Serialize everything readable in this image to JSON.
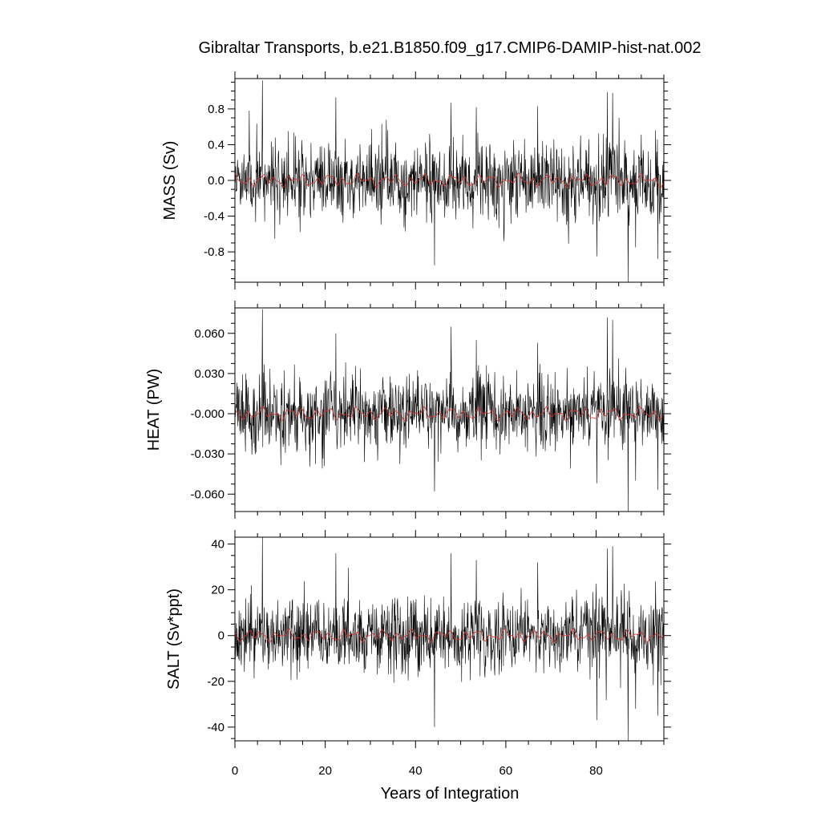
{
  "colors": {
    "raw": "#000000",
    "smooth": "#e0302a"
  },
  "chart_data": {
    "type": "line",
    "title": "Gibraltar Transports, b.e21.B1850.f09_g17.CMIP6-DAMIP-hist-nat.002",
    "xlabel": "Years of Integration",
    "xlim": [
      0,
      95
    ],
    "x_ticks": [
      0,
      20,
      40,
      60,
      80
    ],
    "x_tick_labels": [
      "0",
      "20",
      "40",
      "60",
      "80"
    ],
    "sampling": "monthly values, years 0 to 95, with a running mean in red",
    "panels": [
      {
        "id": "mass",
        "ylabel": "MASS (Sv)",
        "ylim": [
          -1.14,
          1.14
        ],
        "y_ticks": [
          0.8,
          0.4,
          0.0,
          -0.4,
          -0.8
        ],
        "y_tick_labels": [
          "0.8",
          "0.4",
          "0.0",
          "-0.4",
          "-0.8"
        ],
        "typical_amplitude": 0.25,
        "smooth_amplitude": 0.06,
        "peaks": [
          [
            6.1,
            1.12
          ],
          [
            22.3,
            0.93
          ],
          [
            44.2,
            -0.95
          ],
          [
            47.8,
            0.87
          ],
          [
            53.4,
            0.82
          ],
          [
            67.0,
            0.83
          ],
          [
            80.1,
            -0.85
          ],
          [
            82.4,
            0.99
          ],
          [
            83.6,
            0.98
          ],
          [
            87.0,
            -1.14
          ],
          [
            88.7,
            -0.75
          ],
          [
            93.6,
            -0.88
          ],
          [
            59.5,
            -0.68
          ]
        ],
        "series": [
          {
            "name": "",
            "role": "raw",
            "seed": 11,
            "values_note": "noisy monthly series"
          },
          {
            "name": "",
            "role": "smoothed",
            "seed": 11
          }
        ]
      },
      {
        "id": "heat",
        "ylabel": "HEAT (PW)",
        "ylim": [
          -0.073,
          0.079
        ],
        "y_ticks": [
          0.06,
          0.03,
          0.0,
          -0.03,
          -0.06
        ],
        "y_tick_labels": [
          "0.060",
          "0.030",
          "-0.000",
          "-0.030",
          "-0.060"
        ],
        "typical_amplitude": 0.016,
        "smooth_amplitude": 0.004,
        "peaks": [
          [
            6.1,
            0.078
          ],
          [
            22.3,
            0.06
          ],
          [
            44.2,
            -0.058
          ],
          [
            47.8,
            0.065
          ],
          [
            53.4,
            0.055
          ],
          [
            67.0,
            0.053
          ],
          [
            80.1,
            -0.052
          ],
          [
            82.4,
            0.072
          ],
          [
            83.6,
            0.07
          ],
          [
            87.0,
            -0.073
          ],
          [
            88.7,
            -0.05
          ],
          [
            93.6,
            -0.057
          ]
        ],
        "series": [
          {
            "name": "",
            "role": "raw",
            "seed": 23
          },
          {
            "name": "",
            "role": "smoothed",
            "seed": 23
          }
        ]
      },
      {
        "id": "salt",
        "ylabel": "SALT (Sv*ppt)",
        "ylim": [
          -46,
          43
        ],
        "y_ticks": [
          40,
          20,
          0,
          -20,
          -40
        ],
        "y_tick_labels": [
          "40",
          "20",
          "0",
          "-20",
          "-40"
        ],
        "typical_amplitude": 9,
        "smooth_amplitude": 2.2,
        "peaks": [
          [
            6.1,
            43
          ],
          [
            22.3,
            36
          ],
          [
            44.2,
            -40
          ],
          [
            47.8,
            36
          ],
          [
            53.4,
            33
          ],
          [
            67.0,
            32
          ],
          [
            80.1,
            -37
          ],
          [
            82.4,
            38
          ],
          [
            83.6,
            39
          ],
          [
            87.0,
            -46
          ],
          [
            88.7,
            -32
          ],
          [
            93.6,
            -35
          ]
        ],
        "series": [
          {
            "name": "",
            "role": "raw",
            "seed": 37
          },
          {
            "name": "",
            "role": "smoothed",
            "seed": 37
          }
        ]
      }
    ]
  }
}
